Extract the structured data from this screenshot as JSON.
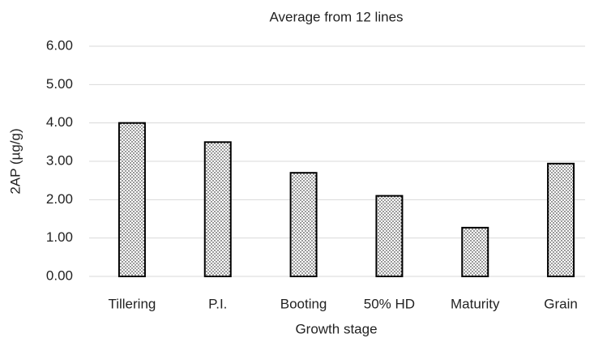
{
  "chart_data": {
    "type": "bar",
    "title": "Average from 12 lines",
    "x_label": "Growth stage",
    "y_label": "2AP (µg/g)",
    "categories": [
      "Tillering",
      "P.I.",
      "Booting",
      "50% HD",
      "Maturity",
      "Grain"
    ],
    "values": [
      4.0,
      3.5,
      2.7,
      2.1,
      1.27,
      2.94
    ],
    "color": "#000000",
    "ylim": [
      0,
      6
    ],
    "yticks": [
      {
        "value": 0,
        "label": "0.00"
      },
      {
        "value": 1,
        "label": "1.00"
      },
      {
        "value": 2,
        "label": "2.00"
      },
      {
        "value": 3,
        "label": "3.00"
      },
      {
        "value": 4,
        "label": "4.00"
      },
      {
        "value": 5,
        "label": "5.00"
      },
      {
        "value": 6,
        "label": "6.00"
      }
    ],
    "grid": true
  }
}
